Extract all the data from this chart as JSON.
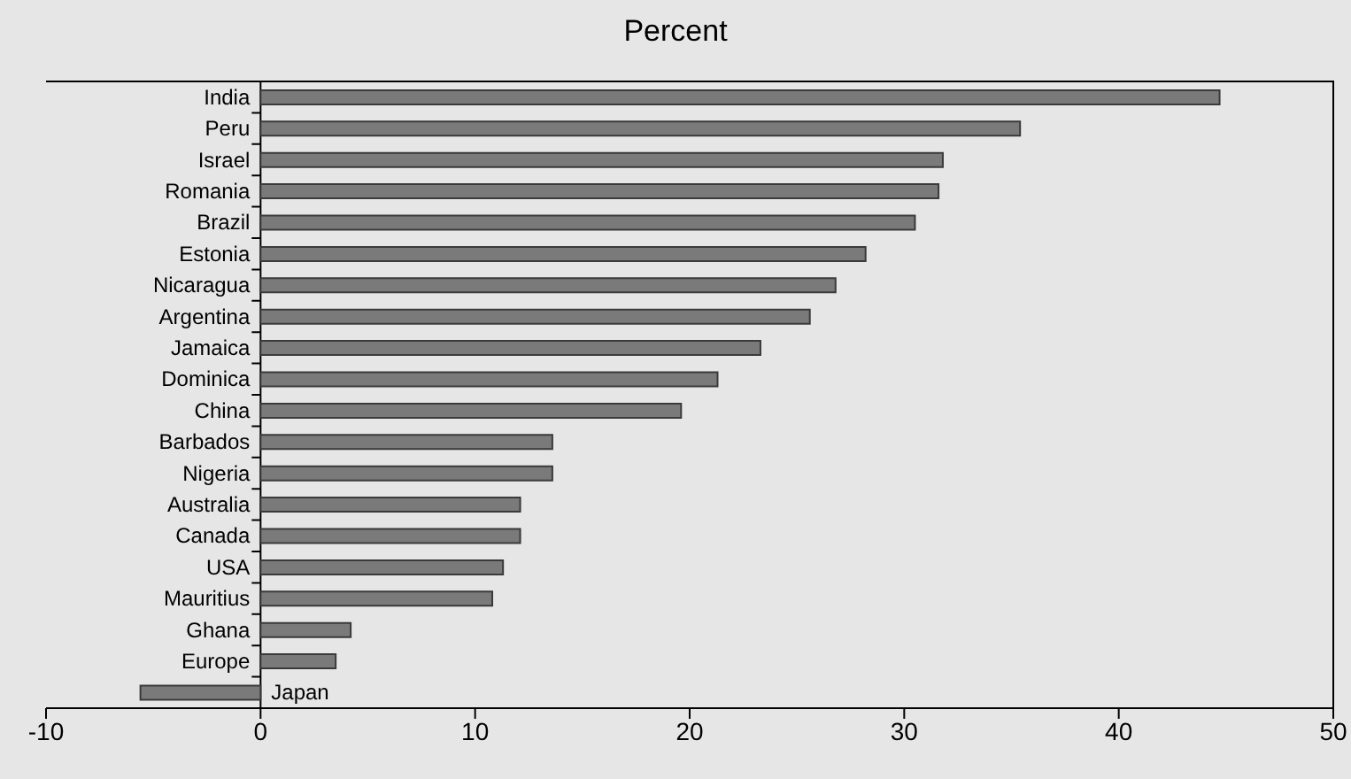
{
  "chart_data": {
    "type": "bar",
    "orientation": "horizontal",
    "title": "Percent",
    "categories": [
      "India",
      "Peru",
      "Israel",
      "Romania",
      "Brazil",
      "Estonia",
      "Nicaragua",
      "Argentina",
      "Jamaica",
      "Dominica",
      "China",
      "Barbados",
      "Nigeria",
      "Australia",
      "Canada",
      "USA",
      "Mauritius",
      "Ghana",
      "Europe",
      "Japan"
    ],
    "values": [
      44.7,
      35.4,
      31.8,
      31.6,
      30.5,
      28.2,
      26.8,
      25.6,
      23.3,
      21.3,
      19.6,
      13.6,
      13.6,
      12.1,
      12.1,
      11.3,
      10.8,
      4.2,
      3.5,
      -5.6
    ],
    "color": "#7a7a7a",
    "xlim": [
      -10,
      50
    ],
    "xticks": [
      -10,
      0,
      10,
      20,
      30,
      40,
      50
    ]
  }
}
